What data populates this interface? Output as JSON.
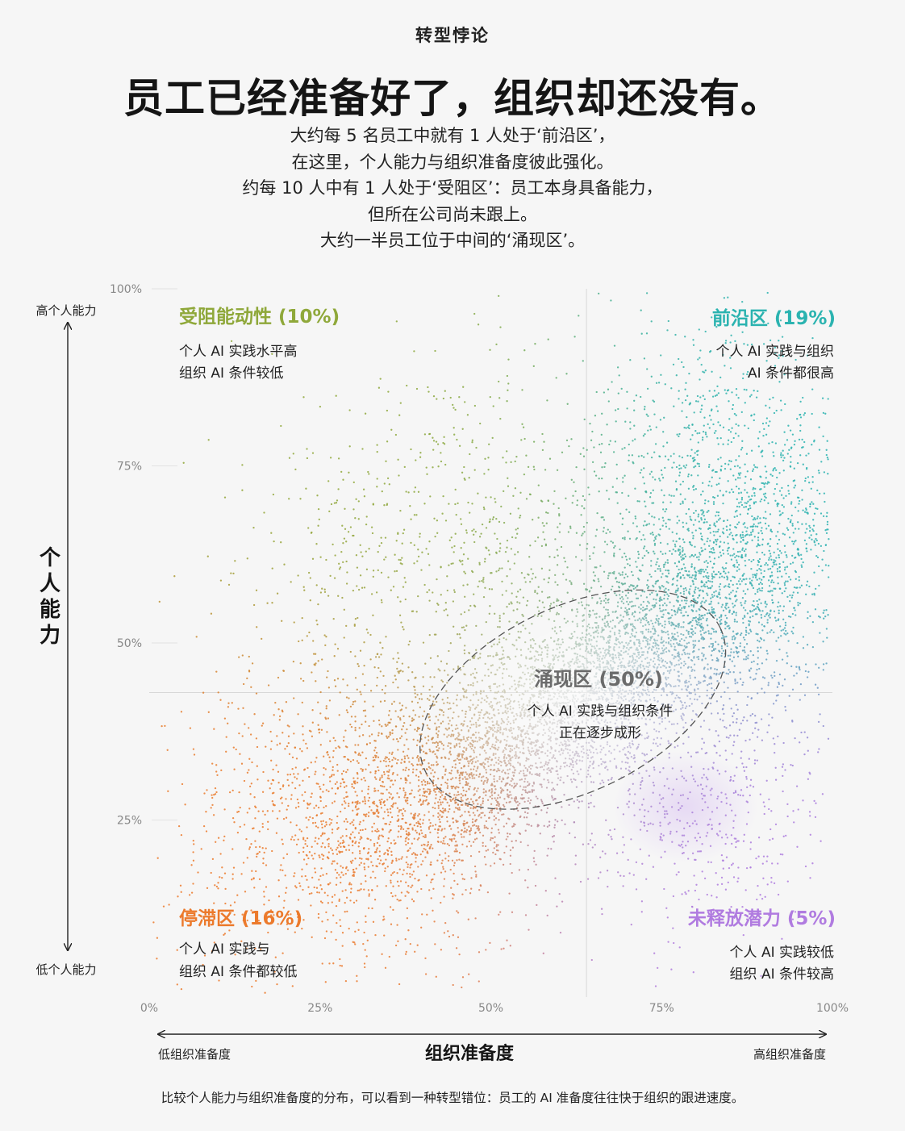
{
  "header": {
    "kicker": "转型悖论",
    "title": "员工已经准备好了，组织却还没有。",
    "subtitle_lines": [
      "大约每 5 名员工中就有 1 人处于‘前沿区’，",
      "在这里，个人能力与组织准备度彼此强化。",
      "约每 10 人中有 1 人处于‘受阻区’：员工本身具备能力，",
      "但所在公司尚未跟上。",
      "大约一半员工位于中间的‘涌现区’。"
    ]
  },
  "footer": {
    "note": "比较个人能力与组织准备度的分布，可以看到一种转型错位：员工的 AI 准备度往往快于组织的跟进速度。"
  },
  "chart_data": {
    "type": "scatter",
    "title": "",
    "xlabel": "组织准备度",
    "ylabel": "个人能力",
    "x_axis_low_label": "低组织准备度",
    "x_axis_high_label": "高组织准备度",
    "y_axis_high_label": "高个人能力",
    "y_axis_low_label": "低个人能力",
    "xlim": [
      0,
      100
    ],
    "ylim": [
      0,
      100
    ],
    "x_ticks": [
      "0%",
      "25%",
      "50%",
      "75%",
      "100%"
    ],
    "y_ticks": [
      "100%",
      "75%",
      "50%",
      "25%"
    ],
    "x_threshold": 64,
    "y_threshold": 43,
    "grid": false,
    "point_count_drawn": 9000,
    "zones": [
      {
        "name": "受阻能动性 (10%)",
        "share": 10,
        "lines": [
          "个人 AI 实践水平高",
          "组织 AI 条件较低"
        ],
        "color": "#8fa83a",
        "center": [
          45,
          62
        ],
        "spread": [
          16,
          13
        ]
      },
      {
        "name": "前沿区 (19%)",
        "share": 19,
        "lines": [
          "个人 AI 实践与组织",
          "AI 条件都很高"
        ],
        "color": "#2bb3b0",
        "center": [
          84,
          65
        ],
        "spread": [
          10,
          16
        ]
      },
      {
        "name": "停滞区 (16%)",
        "share": 16,
        "lines": [
          "个人 AI 实践与",
          "组织 AI 条件都较低"
        ],
        "color": "#ec7a2c",
        "center": [
          32,
          27
        ],
        "spread": [
          13,
          11
        ]
      },
      {
        "name": "未释放潜力 (5%)",
        "share": 5,
        "lines": [
          "个人 AI 实践较低",
          "组织 AI 条件较高"
        ],
        "color": "#b07be0",
        "center": [
          80,
          25
        ],
        "spread": [
          9,
          8
        ]
      },
      {
        "name": "涌现区 (50%)",
        "share": 50,
        "lines": [
          "个人 AI 实践与组织条件",
          "正在逐步成形"
        ],
        "color": "#9fb8c0",
        "center": [
          62,
          42
        ],
        "spread": [
          16,
          12
        ]
      }
    ],
    "emergence_ellipse": {
      "cx": 62,
      "cy": 42,
      "rx": 24,
      "ry": 13,
      "rotation_deg": -26
    }
  }
}
